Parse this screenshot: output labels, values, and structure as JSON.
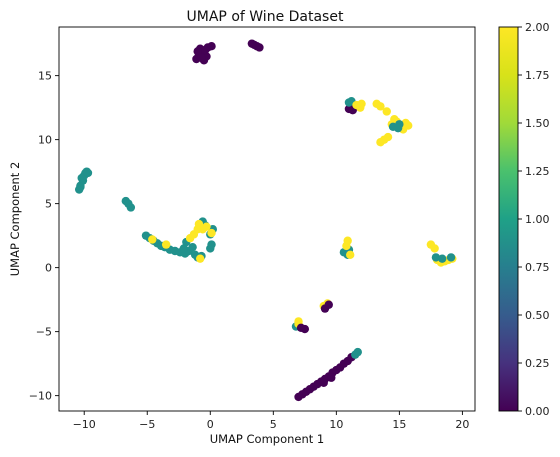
{
  "chart_data": {
    "type": "scatter",
    "title": "UMAP of Wine Dataset",
    "xlabel": "UMAP Component 1",
    "ylabel": "UMAP Component 2",
    "xlim": [
      -12,
      21
    ],
    "ylim": [
      -11.2,
      18.8
    ],
    "xticks": [
      -10,
      -5,
      0,
      5,
      10,
      15,
      20
    ],
    "yticks": [
      -10,
      -5,
      0,
      5,
      10,
      15
    ],
    "grid": false,
    "colormap": "viridis",
    "colorbar": {
      "vmin": 0.0,
      "vmax": 2.0,
      "ticks": [
        "0.00",
        "0.25",
        "0.50",
        "0.75",
        "1.00",
        "1.25",
        "1.50",
        "1.75",
        "2.00"
      ]
    },
    "colors": {
      "class_0": "#440154",
      "class_1": "#21918c",
      "class_2": "#fde725"
    },
    "points": [
      [
        -1.1,
        16.3,
        0
      ],
      [
        -0.9,
        16.6,
        0
      ],
      [
        -0.6,
        16.9,
        0
      ],
      [
        -0.8,
        17.1,
        0
      ],
      [
        -0.3,
        16.5,
        0
      ],
      [
        -0.5,
        16.2,
        0
      ],
      [
        -1.0,
        16.9,
        0
      ],
      [
        -0.2,
        17.2,
        0
      ],
      [
        0.1,
        17.3,
        0
      ],
      [
        -0.7,
        16.4,
        0
      ],
      [
        -0.4,
        17.0,
        0
      ],
      [
        3.3,
        17.5,
        0
      ],
      [
        3.5,
        17.4,
        0
      ],
      [
        3.7,
        17.3,
        0
      ],
      [
        3.9,
        17.2,
        0
      ],
      [
        11.0,
        12.4,
        0
      ],
      [
        11.3,
        12.3,
        0
      ],
      [
        11.5,
        12.6,
        0
      ],
      [
        11.0,
        12.9,
        1
      ],
      [
        11.2,
        13.0,
        1
      ],
      [
        12.0,
        12.8,
        2
      ],
      [
        11.6,
        12.7,
        2
      ],
      [
        11.9,
        12.5,
        2
      ],
      [
        13.2,
        12.8,
        2
      ],
      [
        13.5,
        12.6,
        2
      ],
      [
        14.0,
        12.2,
        2
      ],
      [
        14.4,
        11.2,
        2
      ],
      [
        14.6,
        11.6,
        2
      ],
      [
        14.8,
        11.4,
        2
      ],
      [
        15.2,
        11.0,
        2
      ],
      [
        15.5,
        11.3,
        2
      ],
      [
        15.7,
        11.1,
        2
      ],
      [
        15.3,
        10.8,
        2
      ],
      [
        13.5,
        9.8,
        2
      ],
      [
        13.8,
        10.0,
        2
      ],
      [
        14.1,
        10.2,
        2
      ],
      [
        14.5,
        11.0,
        1
      ],
      [
        15.0,
        11.2,
        1
      ],
      [
        14.9,
        10.9,
        1
      ],
      [
        -10.4,
        6.1,
        1
      ],
      [
        -10.3,
        6.4,
        1
      ],
      [
        -10.1,
        6.8,
        1
      ],
      [
        -10.0,
        7.2,
        1
      ],
      [
        -9.8,
        7.5,
        1
      ],
      [
        -9.9,
        7.4,
        1
      ],
      [
        -10.2,
        7.0,
        1
      ],
      [
        -9.7,
        7.4,
        1
      ],
      [
        -10.3,
        6.3,
        1
      ],
      [
        -6.7,
        5.2,
        1
      ],
      [
        -6.5,
        5.0,
        1
      ],
      [
        -6.3,
        4.7,
        1
      ],
      [
        -5.1,
        2.5,
        1
      ],
      [
        -4.8,
        2.3,
        1
      ],
      [
        -4.5,
        2.1,
        1
      ],
      [
        -4.2,
        1.9,
        1
      ],
      [
        -3.9,
        1.7,
        1
      ],
      [
        -3.6,
        1.6,
        1
      ],
      [
        -3.2,
        1.4,
        1
      ],
      [
        -2.8,
        1.3,
        1
      ],
      [
        -2.4,
        1.2,
        1
      ],
      [
        -2.0,
        1.1,
        1
      ],
      [
        -1.7,
        1.3,
        1
      ],
      [
        -1.4,
        1.6,
        1
      ],
      [
        -1.2,
        1.0,
        1
      ],
      [
        -1.0,
        0.8,
        1
      ],
      [
        -0.7,
        0.9,
        1
      ],
      [
        0.0,
        1.5,
        1
      ],
      [
        0.1,
        1.8,
        1
      ],
      [
        0.0,
        2.6,
        1
      ],
      [
        0.2,
        3.0,
        1
      ],
      [
        -0.6,
        3.6,
        1
      ],
      [
        -0.4,
        3.3,
        1
      ],
      [
        -2.1,
        1.5,
        1
      ],
      [
        -1.9,
        2.0,
        1
      ],
      [
        -4.6,
        2.2,
        2
      ],
      [
        -3.5,
        1.8,
        2
      ],
      [
        -1.6,
        2.3,
        2
      ],
      [
        -1.3,
        2.6,
        2
      ],
      [
        -1.0,
        3.0,
        2
      ],
      [
        -0.9,
        3.4,
        2
      ],
      [
        -0.6,
        3.0,
        2
      ],
      [
        -0.3,
        3.2,
        2
      ],
      [
        0.1,
        2.7,
        2
      ],
      [
        -0.8,
        0.7,
        2
      ],
      [
        10.6,
        1.2,
        1
      ],
      [
        10.9,
        1.0,
        1
      ],
      [
        11.0,
        1.4,
        1
      ],
      [
        10.8,
        1.7,
        2
      ],
      [
        10.9,
        2.1,
        2
      ],
      [
        11.1,
        1.0,
        2
      ],
      [
        17.5,
        1.8,
        2
      ],
      [
        17.8,
        1.5,
        2
      ],
      [
        18.0,
        0.6,
        2
      ],
      [
        18.3,
        0.4,
        2
      ],
      [
        18.6,
        0.5,
        2
      ],
      [
        18.9,
        0.6,
        2
      ],
      [
        19.2,
        0.7,
        2
      ],
      [
        17.9,
        0.8,
        1
      ],
      [
        18.4,
        0.7,
        1
      ],
      [
        19.1,
        0.8,
        1
      ],
      [
        9.0,
        -3.0,
        2
      ],
      [
        9.3,
        -2.8,
        2
      ],
      [
        9.1,
        -3.2,
        0
      ],
      [
        9.4,
        -2.9,
        0
      ],
      [
        6.8,
        -4.6,
        1
      ],
      [
        7.0,
        -4.4,
        2
      ],
      [
        7.0,
        -4.2,
        2
      ],
      [
        7.5,
        -4.8,
        0
      ],
      [
        7.2,
        -4.7,
        0
      ],
      [
        7.0,
        -10.1,
        0
      ],
      [
        7.3,
        -9.9,
        0
      ],
      [
        7.6,
        -9.7,
        0
      ],
      [
        7.9,
        -9.5,
        0
      ],
      [
        8.2,
        -9.3,
        0
      ],
      [
        8.5,
        -9.1,
        0
      ],
      [
        8.8,
        -8.9,
        0
      ],
      [
        9.1,
        -8.7,
        0
      ],
      [
        9.4,
        -8.5,
        0
      ],
      [
        9.7,
        -8.2,
        0
      ],
      [
        10.0,
        -8.0,
        0
      ],
      [
        10.3,
        -7.8,
        0
      ],
      [
        10.6,
        -7.5,
        0
      ],
      [
        10.9,
        -7.3,
        0
      ],
      [
        11.2,
        -7.0,
        0
      ],
      [
        9.0,
        -9.0,
        0
      ],
      [
        9.6,
        -8.6,
        0
      ],
      [
        11.5,
        -6.8,
        1
      ],
      [
        11.7,
        -6.6,
        1
      ]
    ]
  }
}
